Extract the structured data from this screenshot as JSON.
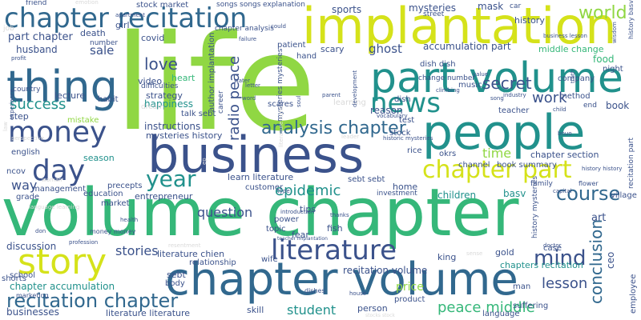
{
  "palette": {
    "purple": "#440154",
    "indigo": "#3b528b",
    "blue": "#31688e",
    "teal": "#21918c",
    "green": "#35b779",
    "lime": "#90d743",
    "yellow": "#d5e21a",
    "grey": "#d9d9d9"
  },
  "words": [
    {
      "text": "life",
      "color": "lime"
    },
    {
      "text": "volume chapter",
      "color": "green"
    },
    {
      "text": "implantation",
      "color": "yellow"
    },
    {
      "text": "business",
      "color": "indigo"
    },
    {
      "text": "people",
      "color": "teal"
    },
    {
      "text": "chapter volume",
      "color": "blue"
    },
    {
      "text": "part volume",
      "color": "teal"
    },
    {
      "text": "chapter recitation",
      "color": "blue"
    },
    {
      "text": "thing",
      "color": "blue"
    },
    {
      "text": "story",
      "color": "yellow"
    },
    {
      "text": "money",
      "color": "indigo"
    },
    {
      "text": "literature",
      "color": "indigo"
    },
    {
      "text": "news",
      "color": "teal"
    },
    {
      "text": "chapter part",
      "color": "yellow"
    },
    {
      "text": "day",
      "color": "indigo"
    },
    {
      "text": "year",
      "color": "teal"
    },
    {
      "text": "recitation chapter",
      "color": "blue"
    },
    {
      "text": "analysis chapter",
      "color": "blue"
    },
    {
      "text": "course",
      "color": "blue"
    },
    {
      "text": "mind",
      "color": "indigo"
    },
    {
      "text": "world",
      "color": "lime"
    },
    {
      "text": "love",
      "color": "indigo"
    },
    {
      "text": "secret",
      "color": "indigo"
    },
    {
      "text": "radio peace",
      "color": "indigo"
    },
    {
      "text": "epidemic",
      "color": "teal"
    },
    {
      "text": "success",
      "color": "teal"
    },
    {
      "text": "question",
      "color": "indigo"
    },
    {
      "text": "conclusion",
      "color": "blue"
    },
    {
      "text": "work",
      "color": "indigo"
    },
    {
      "text": "lesson",
      "color": "indigo"
    },
    {
      "text": "student",
      "color": "teal"
    },
    {
      "text": "peace middle",
      "color": "green"
    },
    {
      "text": "time",
      "color": "lime"
    },
    {
      "text": "part chapter",
      "color": "indigo"
    },
    {
      "text": "stories",
      "color": "indigo"
    },
    {
      "text": "ghost",
      "color": "indigo"
    },
    {
      "text": "sale",
      "color": "indigo"
    },
    {
      "text": "way",
      "color": "indigo"
    },
    {
      "text": "discussion",
      "color": "indigo"
    },
    {
      "text": "accumulation part",
      "color": "indigo"
    },
    {
      "text": "sports",
      "color": "indigo"
    },
    {
      "text": "mysteries",
      "color": "indigo"
    },
    {
      "text": "mask",
      "color": "indigo"
    },
    {
      "text": "history",
      "color": "indigo"
    },
    {
      "text": "stock market",
      "color": "indigo"
    },
    {
      "text": "husband",
      "color": "indigo"
    },
    {
      "text": "death",
      "color": "indigo"
    },
    {
      "text": "girl",
      "color": "indigo"
    },
    {
      "text": "covid",
      "color": "indigo"
    },
    {
      "text": "heart",
      "color": "green"
    },
    {
      "text": "video",
      "color": "indigo"
    },
    {
      "text": "strategy",
      "color": "indigo"
    },
    {
      "text": "lecture",
      "color": "indigo"
    },
    {
      "text": "habit",
      "color": "indigo"
    },
    {
      "text": "happiness",
      "color": "teal"
    },
    {
      "text": "instructions",
      "color": "indigo"
    },
    {
      "text": "mysteries history",
      "color": "indigo"
    },
    {
      "text": "step",
      "color": "indigo"
    },
    {
      "text": "mistake",
      "color": "lime"
    },
    {
      "text": "english",
      "color": "indigo"
    },
    {
      "text": "season",
      "color": "teal"
    },
    {
      "text": "management",
      "color": "indigo"
    },
    {
      "text": "education",
      "color": "indigo"
    },
    {
      "text": "market",
      "color": "indigo"
    },
    {
      "text": "precepts",
      "color": "indigo"
    },
    {
      "text": "entrepreneur",
      "color": "indigo"
    },
    {
      "text": "learn literature",
      "color": "indigo"
    },
    {
      "text": "customer",
      "color": "indigo"
    },
    {
      "text": "home",
      "color": "indigo"
    },
    {
      "text": "children",
      "color": "teal"
    },
    {
      "text": "investment",
      "color": "indigo"
    },
    {
      "text": "tips",
      "color": "indigo"
    },
    {
      "text": "power",
      "color": "indigo"
    },
    {
      "text": "topic",
      "color": "indigo"
    },
    {
      "text": "fear",
      "color": "indigo"
    },
    {
      "text": "fish",
      "color": "indigo"
    },
    {
      "text": "wife",
      "color": "indigo"
    },
    {
      "text": "relationship",
      "color": "indigo"
    },
    {
      "text": "literature chien",
      "color": "indigo"
    },
    {
      "text": "sebt",
      "color": "indigo"
    },
    {
      "text": "body",
      "color": "indigo"
    },
    {
      "text": "school",
      "color": "indigo"
    },
    {
      "text": "chapter accumulation",
      "color": "teal"
    },
    {
      "text": "shorts",
      "color": "indigo"
    },
    {
      "text": "businesses",
      "color": "indigo"
    },
    {
      "text": "literature literature",
      "color": "indigo"
    },
    {
      "text": "skill",
      "color": "indigo"
    },
    {
      "text": "person",
      "color": "indigo"
    },
    {
      "text": "price",
      "color": "lime"
    },
    {
      "text": "product",
      "color": "indigo"
    },
    {
      "text": "recitation volume",
      "color": "indigo"
    },
    {
      "text": "king",
      "color": "indigo"
    },
    {
      "text": "gold",
      "color": "indigo"
    },
    {
      "text": "chapters recitation",
      "color": "teal"
    },
    {
      "text": "suffering",
      "color": "indigo"
    },
    {
      "text": "language",
      "color": "indigo"
    },
    {
      "text": "case",
      "color": "indigo"
    },
    {
      "text": "man",
      "color": "indigo"
    },
    {
      "text": "art",
      "color": "indigo"
    },
    {
      "text": "ceo",
      "color": "indigo"
    },
    {
      "text": "book",
      "color": "indigo"
    },
    {
      "text": "food",
      "color": "green"
    },
    {
      "text": "company",
      "color": "indigo"
    },
    {
      "text": "method",
      "color": "indigo"
    },
    {
      "text": "middle change",
      "color": "green"
    },
    {
      "text": "dish dish",
      "color": "indigo"
    },
    {
      "text": "change number",
      "color": "indigo"
    },
    {
      "text": "chapter section",
      "color": "indigo"
    },
    {
      "text": "book summary",
      "color": "indigo"
    },
    {
      "text": "channel",
      "color": "indigo"
    },
    {
      "text": "sebt sebt",
      "color": "indigo"
    },
    {
      "text": "basv",
      "color": "teal"
    },
    {
      "text": "okrs",
      "color": "indigo"
    },
    {
      "text": "rice",
      "color": "indigo"
    },
    {
      "text": "reason",
      "color": "indigo"
    },
    {
      "text": "dish",
      "color": "indigo"
    },
    {
      "text": "scary",
      "color": "indigo"
    },
    {
      "text": "patient",
      "color": "indigo"
    },
    {
      "text": "hand",
      "color": "indigo"
    },
    {
      "text": "scares",
      "color": "indigo"
    },
    {
      "text": "talk sebt",
      "color": "indigo"
    },
    {
      "text": "test",
      "color": "indigo"
    },
    {
      "text": "stock",
      "color": "indigo"
    },
    {
      "text": "learning",
      "color": "grey"
    },
    {
      "text": "music",
      "color": "indigo"
    },
    {
      "text": "teacher",
      "color": "indigo"
    },
    {
      "text": "end",
      "color": "indigo"
    },
    {
      "text": "night",
      "color": "indigo"
    },
    {
      "text": "street",
      "color": "indigo"
    },
    {
      "text": "chapter analysis",
      "color": "indigo"
    },
    {
      "text": "difficulties",
      "color": "indigo"
    },
    {
      "text": "number",
      "color": "indigo"
    },
    {
      "text": "truth",
      "color": "indigo"
    },
    {
      "text": "experience",
      "color": "indigo"
    },
    {
      "text": "history mysteries",
      "color": "indigo"
    },
    {
      "text": "recitation part",
      "color": "indigo"
    },
    {
      "text": "career",
      "color": "indigo"
    },
    {
      "text": "author implantation",
      "color": "indigo"
    },
    {
      "text": "mysteries mysteries",
      "color": "indigo"
    },
    {
      "text": "employee",
      "color": "indigo"
    },
    {
      "text": "explanation",
      "color": "indigo"
    },
    {
      "text": "songs songs",
      "color": "indigo"
    },
    {
      "text": "history basv",
      "color": "grey"
    },
    {
      "text": "friend",
      "color": "indigo"
    },
    {
      "text": "job",
      "color": "indigo"
    },
    {
      "text": "country",
      "color": "indigo"
    },
    {
      "text": "ncov",
      "color": "indigo"
    },
    {
      "text": "grade",
      "color": "indigo"
    },
    {
      "text": "village",
      "color": "indigo"
    },
    {
      "text": "family",
      "color": "indigo"
    },
    {
      "text": "flower",
      "color": "indigo"
    },
    {
      "text": "money money",
      "color": "indigo"
    },
    {
      "text": "marketing",
      "color": "indigo"
    },
    {
      "text": "thanks",
      "color": "indigo"
    },
    {
      "text": "dishes",
      "color": "indigo"
    },
    {
      "text": "word",
      "color": "indigo"
    },
    {
      "text": "parent",
      "color": "indigo"
    },
    {
      "text": "business lesson",
      "color": "indigo"
    },
    {
      "text": "profit",
      "color": "grey"
    },
    {
      "text": "profession",
      "color": "indigo"
    },
    {
      "text": "dream",
      "color": "indigo"
    },
    {
      "text": "doctor",
      "color": "indigo"
    },
    {
      "text": "car",
      "color": "indigo"
    },
    {
      "text": "house",
      "color": "indigo"
    },
    {
      "text": "history history",
      "color": "indigo"
    },
    {
      "text": "letter",
      "color": "indigo"
    },
    {
      "text": "water",
      "color": "indigo"
    },
    {
      "text": "vocabulary",
      "color": "grey"
    },
    {
      "text": "wisdom",
      "color": "indigo"
    },
    {
      "text": "failure",
      "color": "indigo"
    },
    {
      "text": "could",
      "color": "grey"
    },
    {
      "text": "emotion",
      "color": "indigo"
    },
    {
      "text": "apartment",
      "color": "indigo"
    },
    {
      "text": "child",
      "color": "indigo"
    },
    {
      "text": "capital",
      "color": "indigo"
    },
    {
      "text": "health",
      "color": "indigo"
    },
    {
      "text": "historic mysteries",
      "color": "indigo"
    },
    {
      "text": "bnuo",
      "color": "indigo"
    },
    {
      "text": "introduction",
      "color": "indigo"
    },
    {
      "text": "literature hunt",
      "color": "indigo"
    },
    {
      "text": "teacher implantation",
      "color": "grey"
    },
    {
      "text": "resentment",
      "color": "grey"
    },
    {
      "text": "stocks stock",
      "color": "indigo"
    },
    {
      "text": "soul",
      "color": "indigo"
    },
    {
      "text": "industry",
      "color": "grey"
    },
    {
      "text": "perspective",
      "color": "grey"
    },
    {
      "text": "leader",
      "color": "grey"
    },
    {
      "text": "woman",
      "color": "grey"
    },
    {
      "text": "development",
      "color": "grey"
    },
    {
      "text": "law",
      "color": "indigo"
    },
    {
      "text": "song",
      "color": "indigo"
    },
    {
      "text": "value",
      "color": "indigo"
    },
    {
      "text": "ep",
      "color": "indigo"
    },
    {
      "text": "type",
      "color": "indigo"
    },
    {
      "text": "don",
      "color": "indigo"
    },
    {
      "text": "climbing",
      "color": "grey"
    },
    {
      "text": "sense",
      "color": "grey"
    },
    {
      "text": "language learning",
      "color": "grey"
    }
  ]
}
